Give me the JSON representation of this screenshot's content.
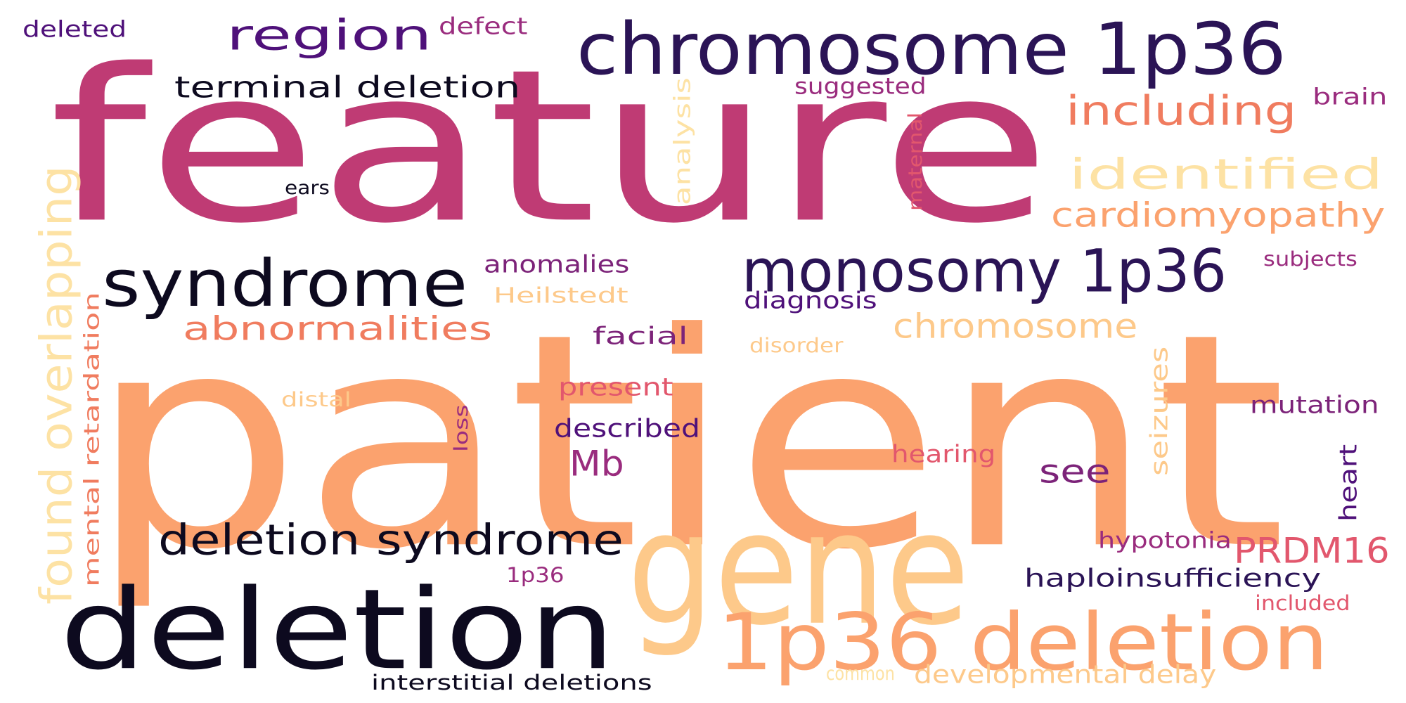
{
  "palette": {
    "dark": "#0d0a1f",
    "indigo": "#2b1456",
    "violet": "#4f117a",
    "plum": "#7c2379",
    "berry": "#9a2c7e",
    "magenta": "#bf3b74",
    "rose": "#e2576d",
    "coral": "#f07c5f",
    "peach": "#fba26e",
    "sand": "#fdc98a",
    "cream": "#fde2a4"
  },
  "words": [
    {
      "id": "patient",
      "text": "patient",
      "color": "peach"
    },
    {
      "id": "feature",
      "text": "feature",
      "color": "magenta"
    },
    {
      "id": "deletion",
      "text": "deletion",
      "color": "dark"
    },
    {
      "id": "gene",
      "text": "gene",
      "color": "sand"
    },
    {
      "id": "chromosome-1p36",
      "text": "chromosome 1p36",
      "color": "indigo"
    },
    {
      "id": "1p36-deletion",
      "text": "1p36 deletion",
      "color": "peach"
    },
    {
      "id": "syndrome",
      "text": "syndrome",
      "color": "dark"
    },
    {
      "id": "monosomy-1p36",
      "text": "monosomy 1p36",
      "color": "indigo"
    },
    {
      "id": "region",
      "text": "region",
      "color": "violet"
    },
    {
      "id": "deletion-syndrome",
      "text": "deletion syndrome",
      "color": "dark"
    },
    {
      "id": "identified",
      "text": "identified",
      "color": "cream"
    },
    {
      "id": "found-overlapping",
      "text": "found overlapping",
      "color": "cream"
    },
    {
      "id": "including",
      "text": "including",
      "color": "coral"
    },
    {
      "id": "cardiomyopathy",
      "text": "cardiomyopathy",
      "color": "peach"
    },
    {
      "id": "terminal-deletion",
      "text": "terminal deletion",
      "color": "dark"
    },
    {
      "id": "abnormalities",
      "text": "abnormalities",
      "color": "coral"
    },
    {
      "id": "chromosome",
      "text": "chromosome",
      "color": "sand"
    },
    {
      "id": "mb",
      "text": "Mb",
      "color": "berry"
    },
    {
      "id": "prdm16",
      "text": "PRDM16",
      "color": "rose"
    },
    {
      "id": "mental-retardation",
      "text": "mental retardation",
      "color": "coral"
    },
    {
      "id": "see",
      "text": "see",
      "color": "plum"
    },
    {
      "id": "haploinsufficiency",
      "text": "haploinsufficiency",
      "color": "indigo"
    },
    {
      "id": "developmental-delay",
      "text": "developmental delay",
      "color": "sand"
    },
    {
      "id": "analysis",
      "text": "analysis",
      "color": "cream"
    },
    {
      "id": "anomalies",
      "text": "anomalies",
      "color": "plum"
    },
    {
      "id": "described",
      "text": "described",
      "color": "violet"
    },
    {
      "id": "mutation",
      "text": "mutation",
      "color": "plum"
    },
    {
      "id": "seizures",
      "text": "seizures",
      "color": "sand"
    },
    {
      "id": "diagnosis",
      "text": "diagnosis",
      "color": "violet"
    },
    {
      "id": "facial",
      "text": "facial",
      "color": "plum"
    },
    {
      "id": "present",
      "text": "present",
      "color": "rose"
    },
    {
      "id": "hearing",
      "text": "hearing",
      "color": "rose"
    },
    {
      "id": "heart",
      "text": "heart",
      "color": "violet"
    },
    {
      "id": "heilstedt",
      "text": "Heilstedt",
      "color": "sand"
    },
    {
      "id": "hypotonia",
      "text": "hypotonia",
      "color": "berry"
    },
    {
      "id": "suggested",
      "text": "suggested",
      "color": "berry"
    },
    {
      "id": "interstitial-deletions",
      "text": "interstitial deletions",
      "color": "dark"
    },
    {
      "id": "deleted",
      "text": "deleted",
      "color": "violet"
    },
    {
      "id": "defect",
      "text": "defect",
      "color": "berry"
    },
    {
      "id": "brain",
      "text": "brain",
      "color": "berry"
    },
    {
      "id": "maternal",
      "text": "maternal",
      "color": "rose"
    },
    {
      "id": "subjects",
      "text": "subjects",
      "color": "berry"
    },
    {
      "id": "disorder",
      "text": "disorder",
      "color": "sand"
    },
    {
      "id": "distal",
      "text": "distal",
      "color": "sand"
    },
    {
      "id": "loss",
      "text": "loss",
      "color": "berry"
    },
    {
      "id": "1p36",
      "text": "1p36",
      "color": "berry"
    },
    {
      "id": "included",
      "text": "included",
      "color": "rose"
    },
    {
      "id": "common",
      "text": "common",
      "color": "cream"
    },
    {
      "id": "ears",
      "text": "ears",
      "color": "dark"
    }
  ]
}
